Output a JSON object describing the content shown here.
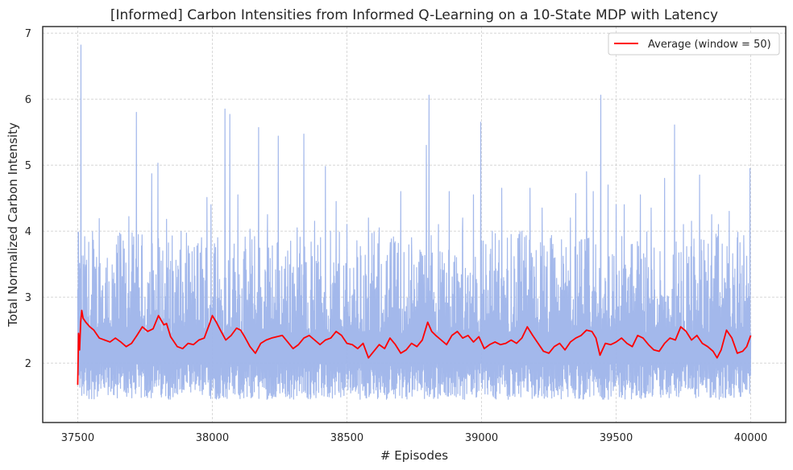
{
  "chart_data": {
    "type": "line",
    "title": "[Informed] Carbon Intensities from Informed Q-Learning on a 10-State MDP with Latency",
    "xlabel": "# Episodes",
    "ylabel": "Total Normalized Carbon Intensity",
    "xlim": [
      37370,
      40130
    ],
    "ylim": [
      1.1,
      7.1
    ],
    "xticks": [
      37500,
      38000,
      38500,
      39000,
      39500,
      40000
    ],
    "yticks": [
      2,
      3,
      4,
      5,
      6,
      7
    ],
    "grid": true,
    "legend": {
      "placement": "upper right"
    },
    "colors": {
      "raw": "#9eb4ea",
      "average": "#ff0000"
    },
    "series": [
      {
        "role": "raw",
        "x_start": 37500,
        "x_end": 40000,
        "baseline": 2.1,
        "low": 1.45,
        "spikes": [
          [
            37503,
            3.97
          ],
          [
            37512,
            6.82
          ],
          [
            37530,
            3.45
          ],
          [
            37555,
            3.99
          ],
          [
            37580,
            4.19
          ],
          [
            37610,
            3.59
          ],
          [
            37660,
            3.95
          ],
          [
            37690,
            4.22
          ],
          [
            37718,
            5.8
          ],
          [
            37740,
            3.3
          ],
          [
            37775,
            4.87
          ],
          [
            37798,
            5.03
          ],
          [
            37830,
            4.18
          ],
          [
            37870,
            3.3
          ],
          [
            37910,
            3.7
          ],
          [
            37960,
            3.9
          ],
          [
            37980,
            4.51
          ],
          [
            37995,
            4.4
          ],
          [
            38020,
            3.9
          ],
          [
            38047,
            5.85
          ],
          [
            38065,
            5.77
          ],
          [
            38095,
            4.55
          ],
          [
            38140,
            4.03
          ],
          [
            38172,
            5.57
          ],
          [
            38205,
            4.25
          ],
          [
            38245,
            5.44
          ],
          [
            38280,
            3.7
          ],
          [
            38315,
            4.05
          ],
          [
            38340,
            5.47
          ],
          [
            38380,
            4.15
          ],
          [
            38420,
            4.98
          ],
          [
            38460,
            4.45
          ],
          [
            38500,
            4.1
          ],
          [
            38540,
            3.6
          ],
          [
            38580,
            4.2
          ],
          [
            38620,
            4.05
          ],
          [
            38660,
            3.65
          ],
          [
            38700,
            4.6
          ],
          [
            38740,
            3.9
          ],
          [
            38795,
            5.3
          ],
          [
            38805,
            6.06
          ],
          [
            38840,
            4.1
          ],
          [
            38880,
            4.6
          ],
          [
            38930,
            4.2
          ],
          [
            38970,
            4.55
          ],
          [
            38997,
            5.65
          ],
          [
            39040,
            4.0
          ],
          [
            39075,
            4.65
          ],
          [
            39110,
            3.95
          ],
          [
            39150,
            4.0
          ],
          [
            39180,
            4.65
          ],
          [
            39225,
            4.35
          ],
          [
            39265,
            3.8
          ],
          [
            39305,
            3.5
          ],
          [
            39330,
            4.2
          ],
          [
            39350,
            4.57
          ],
          [
            39390,
            4.9
          ],
          [
            39415,
            4.6
          ],
          [
            39443,
            6.06
          ],
          [
            39470,
            4.7
          ],
          [
            39500,
            4.4
          ],
          [
            39530,
            4.4
          ],
          [
            39560,
            3.8
          ],
          [
            39590,
            4.55
          ],
          [
            39630,
            4.35
          ],
          [
            39680,
            4.8
          ],
          [
            39717,
            5.61
          ],
          [
            39750,
            4.1
          ],
          [
            39780,
            4.15
          ],
          [
            39810,
            4.85
          ],
          [
            39855,
            4.25
          ],
          [
            39880,
            4.1
          ],
          [
            39920,
            4.3
          ],
          [
            39950,
            3.9
          ],
          [
            39975,
            3.5
          ],
          [
            39997,
            4.95
          ]
        ]
      },
      {
        "role": "average",
        "name": "Average (window = 50)",
        "points": [
          [
            37500,
            1.67
          ],
          [
            37503,
            2.45
          ],
          [
            37507,
            2.2
          ],
          [
            37511,
            2.62
          ],
          [
            37515,
            2.8
          ],
          [
            37520,
            2.68
          ],
          [
            37530,
            2.62
          ],
          [
            37545,
            2.55
          ],
          [
            37560,
            2.5
          ],
          [
            37580,
            2.38
          ],
          [
            37600,
            2.35
          ],
          [
            37620,
            2.32
          ],
          [
            37640,
            2.38
          ],
          [
            37660,
            2.32
          ],
          [
            37680,
            2.25
          ],
          [
            37700,
            2.3
          ],
          [
            37720,
            2.42
          ],
          [
            37740,
            2.55
          ],
          [
            37760,
            2.48
          ],
          [
            37780,
            2.52
          ],
          [
            37800,
            2.72
          ],
          [
            37820,
            2.58
          ],
          [
            37830,
            2.6
          ],
          [
            37845,
            2.4
          ],
          [
            37870,
            2.25
          ],
          [
            37890,
            2.22
          ],
          [
            37910,
            2.3
          ],
          [
            37930,
            2.28
          ],
          [
            37950,
            2.35
          ],
          [
            37970,
            2.38
          ],
          [
            37990,
            2.6
          ],
          [
            38000,
            2.72
          ],
          [
            38015,
            2.62
          ],
          [
            38030,
            2.5
          ],
          [
            38050,
            2.35
          ],
          [
            38070,
            2.42
          ],
          [
            38090,
            2.53
          ],
          [
            38105,
            2.5
          ],
          [
            38120,
            2.4
          ],
          [
            38140,
            2.25
          ],
          [
            38160,
            2.15
          ],
          [
            38180,
            2.3
          ],
          [
            38200,
            2.35
          ],
          [
            38220,
            2.38
          ],
          [
            38240,
            2.4
          ],
          [
            38260,
            2.42
          ],
          [
            38280,
            2.32
          ],
          [
            38300,
            2.22
          ],
          [
            38320,
            2.28
          ],
          [
            38340,
            2.38
          ],
          [
            38360,
            2.42
          ],
          [
            38380,
            2.35
          ],
          [
            38400,
            2.28
          ],
          [
            38420,
            2.35
          ],
          [
            38440,
            2.38
          ],
          [
            38460,
            2.48
          ],
          [
            38480,
            2.42
          ],
          [
            38500,
            2.3
          ],
          [
            38520,
            2.28
          ],
          [
            38540,
            2.22
          ],
          [
            38560,
            2.3
          ],
          [
            38580,
            2.08
          ],
          [
            38600,
            2.18
          ],
          [
            38620,
            2.28
          ],
          [
            38640,
            2.22
          ],
          [
            38660,
            2.38
          ],
          [
            38680,
            2.28
          ],
          [
            38700,
            2.15
          ],
          [
            38720,
            2.2
          ],
          [
            38740,
            2.3
          ],
          [
            38760,
            2.25
          ],
          [
            38780,
            2.35
          ],
          [
            38800,
            2.62
          ],
          [
            38815,
            2.48
          ],
          [
            38830,
            2.42
          ],
          [
            38850,
            2.35
          ],
          [
            38870,
            2.28
          ],
          [
            38890,
            2.42
          ],
          [
            38910,
            2.48
          ],
          [
            38930,
            2.38
          ],
          [
            38950,
            2.42
          ],
          [
            38970,
            2.32
          ],
          [
            38990,
            2.4
          ],
          [
            39010,
            2.22
          ],
          [
            39030,
            2.28
          ],
          [
            39050,
            2.32
          ],
          [
            39070,
            2.28
          ],
          [
            39090,
            2.3
          ],
          [
            39110,
            2.35
          ],
          [
            39130,
            2.3
          ],
          [
            39150,
            2.38
          ],
          [
            39170,
            2.55
          ],
          [
            39190,
            2.42
          ],
          [
            39210,
            2.3
          ],
          [
            39230,
            2.18
          ],
          [
            39250,
            2.15
          ],
          [
            39270,
            2.25
          ],
          [
            39290,
            2.3
          ],
          [
            39310,
            2.2
          ],
          [
            39330,
            2.32
          ],
          [
            39350,
            2.38
          ],
          [
            39370,
            2.42
          ],
          [
            39390,
            2.5
          ],
          [
            39410,
            2.48
          ],
          [
            39425,
            2.38
          ],
          [
            39440,
            2.12
          ],
          [
            39460,
            2.3
          ],
          [
            39480,
            2.28
          ],
          [
            39500,
            2.32
          ],
          [
            39520,
            2.38
          ],
          [
            39540,
            2.3
          ],
          [
            39560,
            2.25
          ],
          [
            39580,
            2.42
          ],
          [
            39600,
            2.38
          ],
          [
            39620,
            2.28
          ],
          [
            39640,
            2.2
          ],
          [
            39660,
            2.18
          ],
          [
            39680,
            2.3
          ],
          [
            39700,
            2.38
          ],
          [
            39720,
            2.35
          ],
          [
            39740,
            2.55
          ],
          [
            39760,
            2.48
          ],
          [
            39780,
            2.35
          ],
          [
            39800,
            2.42
          ],
          [
            39820,
            2.3
          ],
          [
            39840,
            2.25
          ],
          [
            39860,
            2.18
          ],
          [
            39875,
            2.08
          ],
          [
            39890,
            2.2
          ],
          [
            39910,
            2.5
          ],
          [
            39930,
            2.38
          ],
          [
            39950,
            2.15
          ],
          [
            39970,
            2.18
          ],
          [
            39985,
            2.25
          ],
          [
            40000,
            2.42
          ]
        ]
      }
    ]
  }
}
